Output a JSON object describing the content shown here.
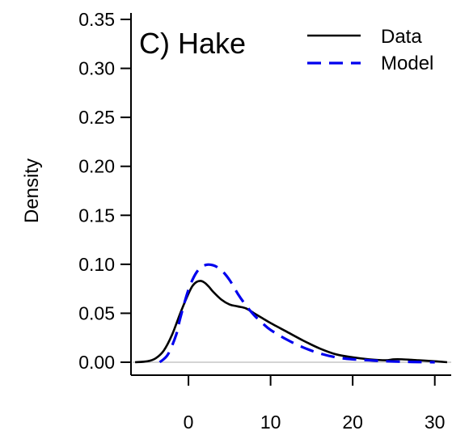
{
  "chart_data": {
    "type": "line",
    "title": "C) Hake",
    "xlabel": "",
    "ylabel": "Density",
    "xlim": [
      -7,
      32
    ],
    "ylim": [
      0,
      0.35
    ],
    "xticks": [
      0,
      10,
      20,
      30
    ],
    "yticks": [
      0.0,
      0.05,
      0.1,
      0.15,
      0.2,
      0.25,
      0.3,
      0.35
    ],
    "ytick_labels": [
      "0.00",
      "0.05",
      "0.10",
      "0.15",
      "0.20",
      "0.25",
      "0.30",
      "0.35"
    ],
    "xtick_labels": [
      "0",
      "10",
      "20",
      "30"
    ],
    "baseline": 0,
    "grid": false,
    "legend_position": "top-right",
    "series": [
      {
        "name": "Data",
        "style": "solid",
        "color": "#000000",
        "x": [
          -6.5,
          -5,
          -4,
          -3,
          -2,
          -1,
          0,
          0.5,
          1,
          1.5,
          2,
          2.5,
          3,
          4,
          5,
          6,
          7,
          8,
          9,
          10,
          12,
          14,
          16,
          18,
          20,
          22,
          24,
          25,
          26,
          28,
          30,
          31.5
        ],
        "y": [
          0.0,
          0.001,
          0.004,
          0.012,
          0.028,
          0.05,
          0.07,
          0.078,
          0.082,
          0.083,
          0.081,
          0.077,
          0.072,
          0.064,
          0.059,
          0.057,
          0.055,
          0.05,
          0.045,
          0.04,
          0.031,
          0.022,
          0.014,
          0.008,
          0.005,
          0.003,
          0.002,
          0.003,
          0.003,
          0.002,
          0.001,
          0.0
        ]
      },
      {
        "name": "Model",
        "style": "dashed",
        "color": "#0000ee",
        "x": [
          -3.5,
          -2.5,
          -1.5,
          -1,
          0,
          1,
          2,
          3,
          4,
          5,
          6,
          7,
          8,
          9,
          10,
          12,
          14,
          16,
          18,
          20,
          22,
          24,
          26,
          28,
          30
        ],
        "y": [
          0.0,
          0.008,
          0.028,
          0.045,
          0.074,
          0.092,
          0.099,
          0.099,
          0.094,
          0.084,
          0.07,
          0.058,
          0.048,
          0.04,
          0.033,
          0.023,
          0.015,
          0.009,
          0.005,
          0.003,
          0.002,
          0.001,
          0.0005,
          0.0002,
          0.0
        ]
      }
    ]
  }
}
